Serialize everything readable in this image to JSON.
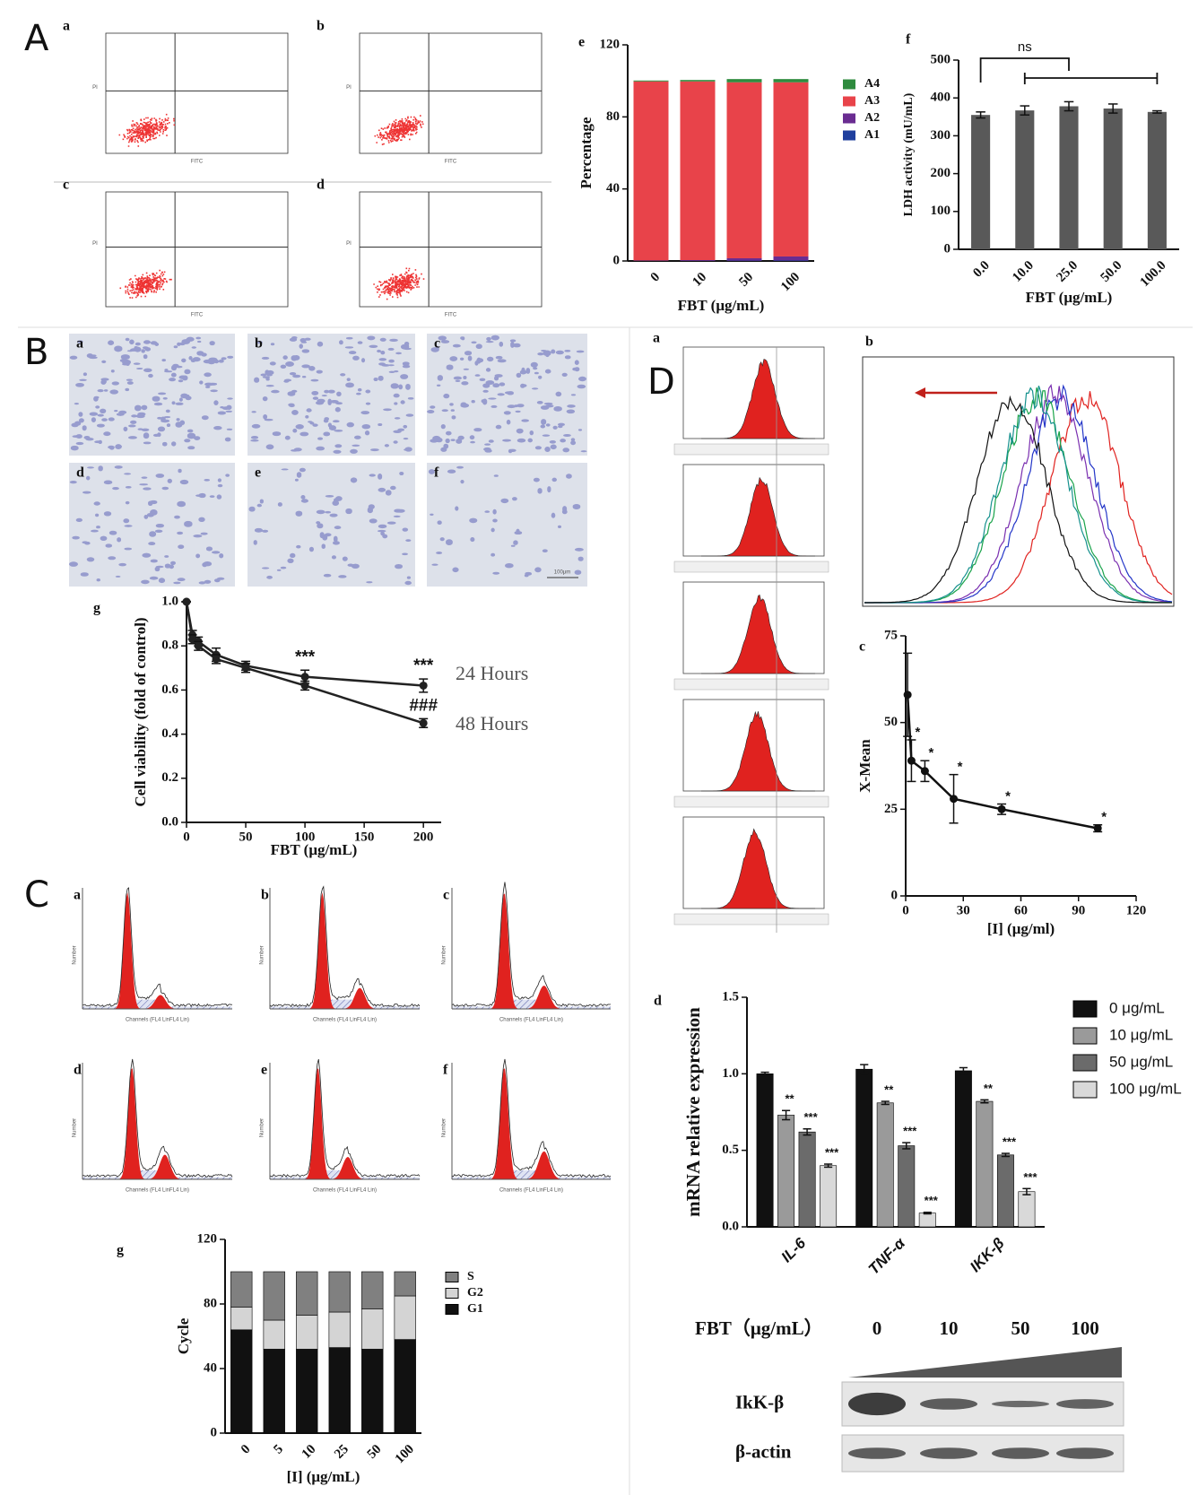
{
  "figure": {
    "panel_letters": [
      "A",
      "B",
      "C",
      "D"
    ],
    "image_labels": {
      "A": [
        "a",
        "b",
        "c",
        "d"
      ],
      "B": [
        "a",
        "b",
        "c",
        "d",
        "e",
        "f"
      ],
      "C": [
        "a",
        "b",
        "c",
        "d",
        "e",
        "f"
      ],
      "D": [
        "a",
        "b"
      ]
    },
    "flow_axes": [
      "FITC",
      "PI"
    ],
    "cycle_axes": [
      "Channels (FL4 LinFL4 Lin)",
      "Number"
    ],
    "scale_bar": "100μm",
    "blot": {
      "title": "FBT（μg/mL）",
      "doses": [
        "0",
        "10",
        "50",
        "100"
      ],
      "bands": [
        "IkK-β",
        "β-actin"
      ]
    }
  },
  "chart_data": [
    {
      "type": "bar",
      "stacked": true,
      "label": "e",
      "ylabel": "Percentage",
      "xlabel": "FBT (μg/mL)",
      "categories": [
        "0",
        "10",
        "50",
        "100"
      ],
      "series": [
        {
          "name": "A1",
          "color": "#1f3f9e",
          "values": [
            0.1,
            0.1,
            0.2,
            0.3
          ]
        },
        {
          "name": "A2",
          "color": "#6a2c91",
          "values": [
            0.2,
            0.4,
            1.3,
            2.2
          ]
        },
        {
          "name": "A3",
          "color": "#e8434a",
          "values": [
            99.4,
            99.2,
            97.7,
            96.7
          ]
        },
        {
          "name": "A4",
          "color": "#2e8b3e",
          "values": [
            0.5,
            0.8,
            1.8,
            1.8
          ]
        }
      ],
      "ylim": [
        0,
        120
      ],
      "yticks": [
        0,
        40,
        80,
        120
      ]
    },
    {
      "type": "bar",
      "label": "f",
      "ylabel": "LDH activity (mU/mL)",
      "xlabel": "FBT (μg/mL)",
      "categories": [
        "0.0",
        "10.0",
        "25.0",
        "50.0",
        "100.0"
      ],
      "values": [
        355,
        367,
        378,
        372,
        363
      ],
      "errors": [
        8,
        12,
        12,
        12,
        3
      ],
      "color": "#595959",
      "ylim": [
        0,
        500
      ],
      "yticks": [
        0,
        100,
        200,
        300,
        400,
        500
      ],
      "annotation": "ns"
    },
    {
      "type": "line",
      "label": "g",
      "ylabel": "Cell viability (fold of control)",
      "xlabel": "FBT (μg/mL)",
      "x": [
        0,
        5,
        10,
        25,
        50,
        100,
        200
      ],
      "series": [
        {
          "name": "24 Hours",
          "color": "#222222",
          "values": [
            1.0,
            0.85,
            0.82,
            0.76,
            0.71,
            0.66,
            0.62
          ],
          "errors": [
            0,
            0.02,
            0.02,
            0.03,
            0.02,
            0.03,
            0.03
          ]
        },
        {
          "name": "48 Hours",
          "color": "#222222",
          "values": [
            1.0,
            0.83,
            0.8,
            0.74,
            0.7,
            0.62,
            0.45
          ],
          "errors": [
            0,
            0.02,
            0.02,
            0.02,
            0.02,
            0.02,
            0.02
          ]
        }
      ],
      "xlim": [
        0,
        215
      ],
      "xticks": [
        0,
        50,
        100,
        150,
        200
      ],
      "ylim": [
        0,
        1.0
      ],
      "yticks": [
        {
          "value": 0,
          "label": "0.0"
        },
        {
          "value": 0.2,
          "label": "0.2"
        },
        {
          "value": 0.4,
          "label": "0.4"
        },
        {
          "value": 0.6,
          "label": "0.6"
        },
        {
          "value": 0.8,
          "label": "0.8"
        },
        {
          "value": 1,
          "label": "1.0"
        }
      ],
      "annotations": [
        "***",
        "***",
        "###"
      ]
    },
    {
      "type": "line",
      "label": "c",
      "ylabel": "X-Mean",
      "xlabel": "[I] (μg/ml)",
      "x": [
        1,
        3,
        10,
        25,
        50,
        100
      ],
      "values": [
        58,
        39,
        36,
        28,
        25,
        19.5
      ],
      "errors": [
        12,
        6,
        3,
        7,
        1.5,
        1
      ],
      "color": "#111111",
      "xlim": [
        0,
        120
      ],
      "xticks": [
        0,
        30,
        60,
        90,
        120
      ],
      "ylim": [
        0,
        75
      ],
      "yticks": [
        0,
        25,
        50,
        75
      ],
      "annotations": [
        "*",
        "*",
        "*",
        "*",
        "*"
      ]
    },
    {
      "type": "bar",
      "label": "d",
      "ylabel": "mRNA relative expression",
      "categories": [
        "IL-6",
        "TNF-α",
        "IKK-β"
      ],
      "series": [
        {
          "name": "0 μg/mL",
          "color": "#111111",
          "values": [
            1.0,
            1.03,
            1.02
          ],
          "errors": [
            0.01,
            0.03,
            0.02
          ]
        },
        {
          "name": "10 μg/mL",
          "color": "#9a9a9a",
          "values": [
            0.73,
            0.81,
            0.82
          ],
          "errors": [
            0.03,
            0.01,
            0.01
          ],
          "annotations": [
            "**",
            "**",
            "**"
          ]
        },
        {
          "name": "50 μg/mL",
          "color": "#6b6b6b",
          "values": [
            0.62,
            0.53,
            0.47
          ],
          "errors": [
            0.02,
            0.02,
            0.01
          ],
          "annotations": [
            "***",
            "***",
            "***"
          ]
        },
        {
          "name": "100 μg/mL",
          "color": "#d9d9d9",
          "values": [
            0.4,
            0.09,
            0.23
          ],
          "errors": [
            0.01,
            0.005,
            0.02
          ],
          "annotations": [
            "***",
            "***",
            "***"
          ]
        }
      ],
      "ylim": [
        0,
        1.5
      ],
      "yticks": [
        {
          "value": 0,
          "label": "0.0"
        },
        {
          "value": 0.5,
          "label": "0.5"
        },
        {
          "value": 1,
          "label": "1.0"
        },
        {
          "value": 1.5,
          "label": "1.5"
        }
      ]
    },
    {
      "type": "bar",
      "stacked": true,
      "label": "g",
      "ylabel": "Cycle",
      "xlabel": "[I] (μg/mL)",
      "categories": [
        "0",
        "5",
        "10",
        "25",
        "50",
        "100"
      ],
      "series": [
        {
          "name": "G1",
          "color": "#111111",
          "values": [
            64,
            52,
            52,
            53,
            52,
            58
          ]
        },
        {
          "name": "G2",
          "color": "#d4d4d4",
          "values": [
            14,
            18,
            21,
            22,
            25,
            27
          ]
        },
        {
          "name": "S",
          "color": "#808080",
          "values": [
            22,
            30,
            27,
            25,
            23,
            15
          ]
        }
      ],
      "ylim": [
        0,
        120
      ],
      "yticks": [
        0,
        40,
        80,
        120
      ]
    }
  ]
}
